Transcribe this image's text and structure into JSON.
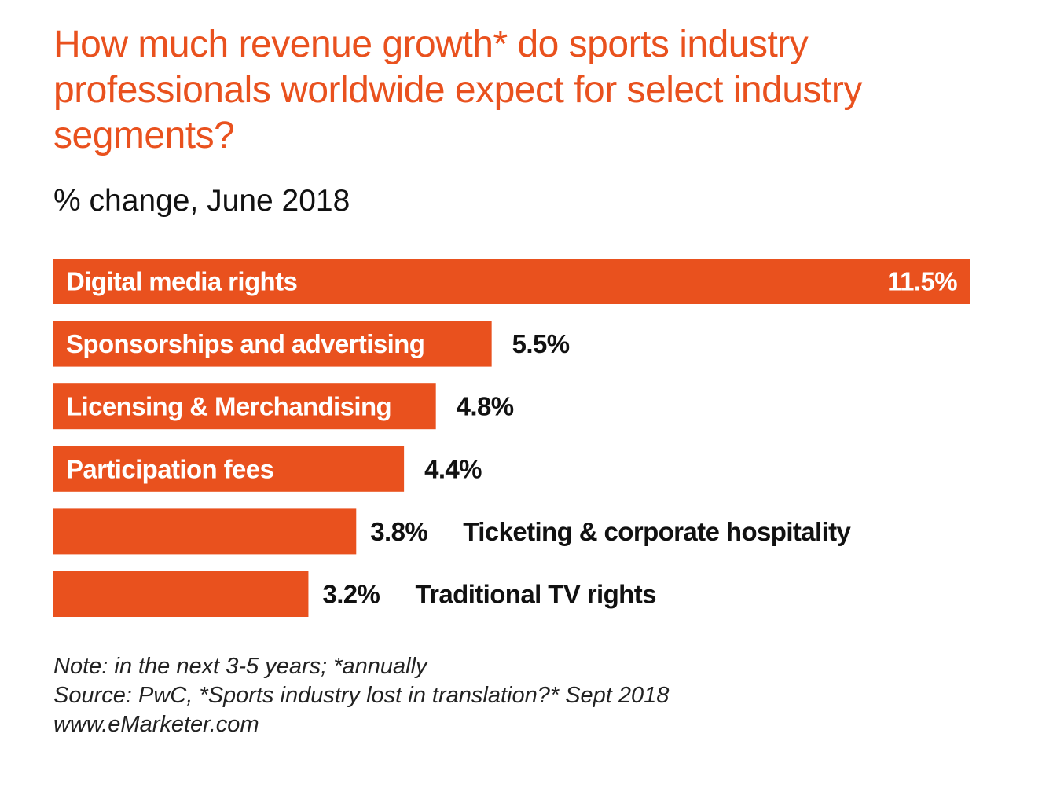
{
  "title": "How much revenue growth* do sports industry professionals worldwide expect for select industry segments?",
  "subtitle": "% change, June 2018",
  "colors": {
    "bar": "#e9511e",
    "title": "#e9511e",
    "text": "#111111"
  },
  "chart_data": {
    "type": "bar",
    "orientation": "horizontal",
    "title": "How much revenue growth* do sports industry professionals worldwide expect for select industry segments?",
    "subtitle": "% change, June 2018",
    "categories": [
      "Digital media rights",
      "Sponsorships and advertising",
      "Licensing & Merchandising",
      "Participation fees",
      "Ticketing & corporate hospitality",
      "Traditional TV rights"
    ],
    "values": [
      11.5,
      5.5,
      4.8,
      4.4,
      3.8,
      3.2
    ],
    "value_labels": [
      "11.5%",
      "5.5%",
      "4.8%",
      "4.4%",
      "3.8%",
      "3.2%"
    ],
    "label_position": [
      "inside",
      "inside",
      "inside",
      "inside",
      "outside",
      "outside"
    ],
    "xlim": [
      0,
      11.5
    ],
    "grid": false,
    "legend": "none"
  },
  "footnotes": {
    "note": "Note: in the next 3-5 years; *annually",
    "source": "Source: PwC, *Sports industry lost in translation?* Sept 2018",
    "site": "www.eMarketer.com"
  }
}
